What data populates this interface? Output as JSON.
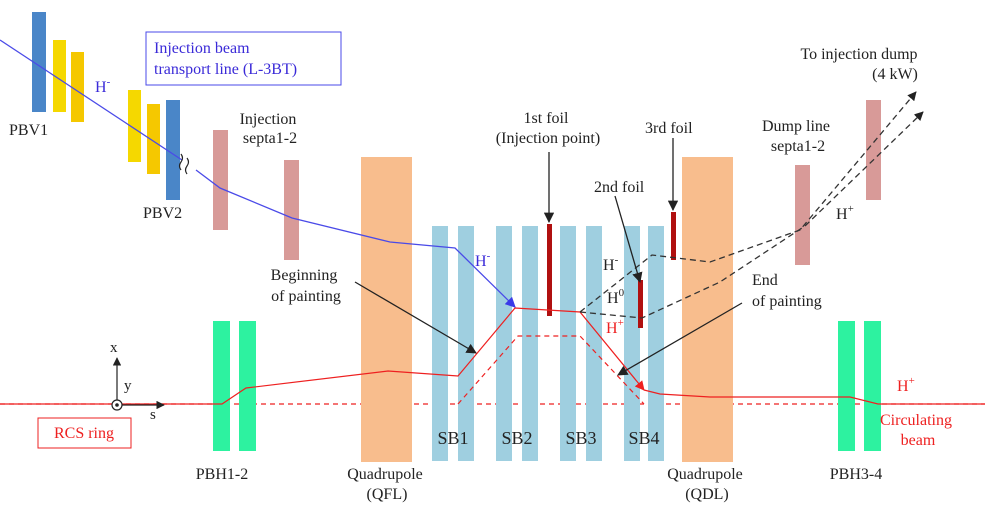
{
  "labels": {
    "pbv1": "PBV1",
    "pbv2": "PBV2",
    "h_minus_top": "H",
    "h_minus_top_sup": "-",
    "injection_line": [
      "Injection beam",
      "transport line (L-3BT)"
    ],
    "injection_septa": [
      "Injection",
      "septa1-2"
    ],
    "first_foil": [
      "1st foil",
      "(Injection point)"
    ],
    "second_foil": "2nd foil",
    "third_foil": "3rd foil",
    "dump_line_septa": [
      "Dump line",
      "septa1-2"
    ],
    "to_injection_dump": [
      "To injection dump",
      "(4 kW)"
    ],
    "h_plus_dump": "H",
    "h_plus_dump_sup": "+",
    "beginning_of_painting": [
      "Beginning",
      "of painting"
    ],
    "end_of_painting": [
      "End",
      "of painting"
    ],
    "h_minus_mid": "H",
    "h_minus_mid_sup": "-",
    "h_minus_foil": "H",
    "h_minus_foil_sup": "-",
    "h_zero": "H",
    "h_zero_sup": "0",
    "h_plus_ring": "H",
    "h_plus_ring_sup": "+",
    "h_plus_right": "H",
    "h_plus_right_sup": "+",
    "circulating_beam": [
      "Circulating",
      "beam"
    ],
    "rcs_ring": "RCS ring",
    "axis_x": "x",
    "axis_y": "y",
    "axis_s": "s",
    "sb1": "SB1",
    "sb2": "SB2",
    "sb3": "SB3",
    "sb4": "SB4",
    "pbh12": "PBH1-2",
    "pbh34": "PBH3-4",
    "qfl": [
      "Quadrupole",
      "(QFL)"
    ],
    "qdl": [
      "Quadrupole",
      "(QDL)"
    ]
  },
  "colors": {
    "pbv_blue": "#4a86c8",
    "pbv_yellow": "#f5d800",
    "pbv_orange": "#f5b800",
    "septa": "#d89a98",
    "quadrupole": "#f8bd8d",
    "shift_bump": "#9fcfe0",
    "pbh": "#2df2a0",
    "foil": "#b01010",
    "injection_beam": "#4a4ae8",
    "ring_beam": "#ee2020",
    "dump_beam": "#333333",
    "ring_label": "#ee2020",
    "injection_label": "#3a2ad8"
  },
  "icons": {
    "axis_y": "dot-in-circle-icon",
    "beam_break": "wavy-break-icon"
  }
}
